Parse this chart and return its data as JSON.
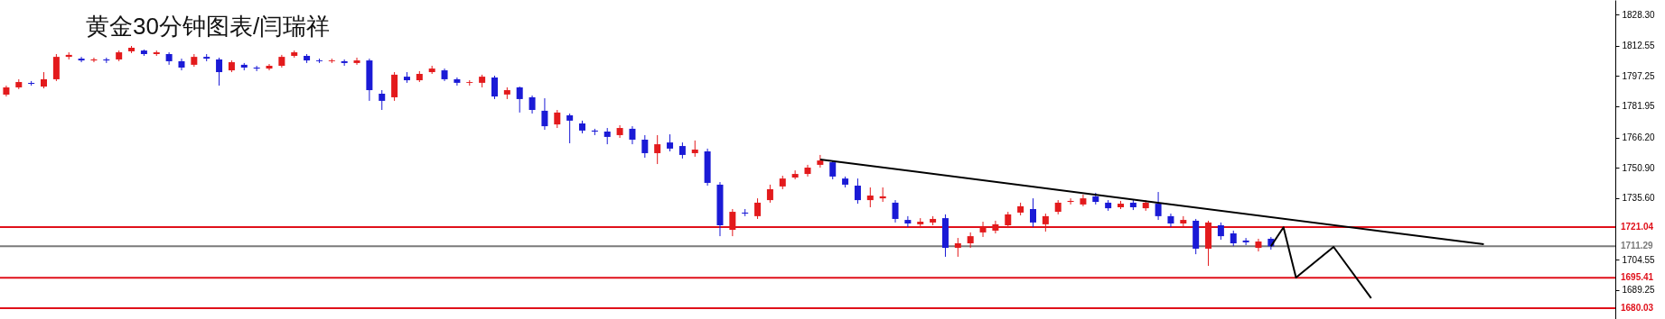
{
  "chart_data": {
    "type": "candlestick",
    "title": "黄金30分钟图表/闫瑞祥",
    "tick_labels": "y",
    "grid": false,
    "categories": [
      null,
      null,
      null,
      null,
      null,
      null,
      null,
      null,
      null,
      null,
      null,
      null,
      null,
      null,
      null,
      null,
      null,
      null,
      null,
      null,
      null,
      null,
      null,
      null,
      null,
      null,
      null,
      null,
      null,
      null,
      null,
      null,
      null,
      null,
      null,
      null,
      null,
      null,
      null,
      null,
      null,
      null,
      null,
      null,
      null,
      null,
      null,
      null,
      null,
      null,
      null,
      null,
      null,
      null,
      null,
      null,
      null,
      null,
      null,
      null,
      null,
      null,
      null,
      null,
      null,
      null,
      null,
      null,
      null,
      null,
      null,
      null,
      null,
      null,
      null,
      null,
      null,
      null,
      null,
      null,
      null,
      null,
      null,
      null,
      null,
      null,
      null,
      null,
      null,
      null,
      null,
      null,
      null,
      null,
      null,
      null,
      null,
      null,
      null,
      null,
      null,
      null,
      null,
      null,
      null,
      null,
      null,
      null,
      null,
      null,
      null,
      null,
      null,
      null,
      null,
      null,
      null,
      null,
      null,
      null,
      null,
      null,
      null,
      null,
      null,
      null,
      null,
      null,
      null
    ],
    "ylim": [
      1674.6,
      1835.6
    ],
    "yticks": [
      {
        "value": 1828.3,
        "label": "1828.30"
      },
      {
        "value": 1812.55,
        "label": "1812.55"
      },
      {
        "value": 1797.25,
        "label": "1797.25"
      },
      {
        "value": 1781.95,
        "label": "1781.95"
      },
      {
        "value": 1766.2,
        "label": "1766.20"
      },
      {
        "value": 1750.9,
        "label": "1750.90"
      },
      {
        "value": 1735.6,
        "label": "1735.60"
      },
      {
        "value": 1704.55,
        "label": "1704.55"
      },
      {
        "value": 1689.25,
        "label": "1689.25"
      }
    ],
    "ohlc": [
      [
        1787.9,
        1792.4,
        1786.9,
        1791.5
      ],
      [
        1791.5,
        1795.6,
        1790.6,
        1794.2
      ],
      [
        1793.8,
        1794.7,
        1792.4,
        1793.3
      ],
      [
        1791.9,
        1799.2,
        1791.0,
        1795.6
      ],
      [
        1795.6,
        1808.3,
        1794.7,
        1806.9
      ],
      [
        1806.9,
        1809.2,
        1805.6,
        1807.9
      ],
      [
        1806.0,
        1806.9,
        1804.2,
        1805.1
      ],
      [
        1805.1,
        1806.5,
        1804.2,
        1805.6
      ],
      [
        1805.6,
        1806.5,
        1803.8,
        1805.1
      ],
      [
        1805.6,
        1810.1,
        1804.7,
        1809.2
      ],
      [
        1809.7,
        1812.4,
        1808.8,
        1811.5
      ],
      [
        1810.1,
        1810.6,
        1807.4,
        1808.3
      ],
      [
        1808.3,
        1810.1,
        1807.4,
        1809.2
      ],
      [
        1808.3,
        1809.2,
        1802.9,
        1804.7
      ],
      [
        1804.7,
        1806.0,
        1800.1,
        1801.5
      ],
      [
        1802.9,
        1808.3,
        1801.9,
        1806.9
      ],
      [
        1806.9,
        1808.3,
        1804.7,
        1806.0
      ],
      [
        1805.6,
        1806.5,
        1792.4,
        1799.2
      ],
      [
        1800.1,
        1805.1,
        1799.2,
        1804.2
      ],
      [
        1802.9,
        1803.8,
        1800.1,
        1801.5
      ],
      [
        1801.5,
        1802.4,
        1799.7,
        1801.0
      ],
      [
        1801.0,
        1803.3,
        1800.1,
        1802.4
      ],
      [
        1802.4,
        1807.9,
        1801.5,
        1806.9
      ],
      [
        1807.4,
        1810.1,
        1806.5,
        1809.2
      ],
      [
        1807.4,
        1808.3,
        1803.8,
        1805.1
      ],
      [
        1805.1,
        1806.0,
        1803.8,
        1804.7
      ],
      [
        1804.7,
        1806.0,
        1803.8,
        1805.1
      ],
      [
        1804.7,
        1805.6,
        1802.4,
        1803.8
      ],
      [
        1803.8,
        1806.5,
        1802.9,
        1805.1
      ],
      [
        1805.1,
        1806.0,
        1784.7,
        1790.1
      ],
      [
        1788.3,
        1790.1,
        1780.1,
        1784.7
      ],
      [
        1786.5,
        1799.2,
        1784.7,
        1797.9
      ],
      [
        1796.9,
        1799.2,
        1793.8,
        1795.1
      ],
      [
        1795.1,
        1799.7,
        1794.2,
        1798.3
      ],
      [
        1799.2,
        1802.4,
        1798.3,
        1801.0
      ],
      [
        1800.1,
        1801.0,
        1794.7,
        1795.6
      ],
      [
        1795.6,
        1796.5,
        1792.4,
        1793.8
      ],
      [
        1793.8,
        1795.1,
        1792.4,
        1794.2
      ],
      [
        1793.8,
        1797.9,
        1791.5,
        1796.9
      ],
      [
        1796.5,
        1797.4,
        1785.6,
        1786.9
      ],
      [
        1787.9,
        1791.5,
        1785.6,
        1790.1
      ],
      [
        1791.5,
        1791.9,
        1778.8,
        1785.6
      ],
      [
        1786.5,
        1787.4,
        1778.3,
        1780.1
      ],
      [
        1779.7,
        1786.0,
        1770.1,
        1771.9
      ],
      [
        1772.8,
        1780.1,
        1771.0,
        1778.8
      ],
      [
        1777.4,
        1778.3,
        1763.3,
        1774.7
      ],
      [
        1773.3,
        1774.7,
        1768.3,
        1769.7
      ],
      [
        1769.7,
        1770.6,
        1767.4,
        1769.2
      ],
      [
        1769.2,
        1771.0,
        1762.8,
        1766.5
      ],
      [
        1767.4,
        1772.4,
        1766.0,
        1771.0
      ],
      [
        1770.6,
        1771.9,
        1762.8,
        1765.1
      ],
      [
        1765.1,
        1767.4,
        1756.0,
        1758.3
      ],
      [
        1758.3,
        1767.4,
        1752.8,
        1762.8
      ],
      [
        1763.7,
        1767.8,
        1759.2,
        1760.6
      ],
      [
        1761.9,
        1763.7,
        1755.6,
        1757.4
      ],
      [
        1758.3,
        1764.7,
        1756.5,
        1760.1
      ],
      [
        1759.2,
        1760.6,
        1741.9,
        1743.3
      ],
      [
        1742.4,
        1743.7,
        1716.4,
        1721.9
      ],
      [
        1719.6,
        1730.1,
        1716.4,
        1728.7
      ],
      [
        1728.3,
        1730.1,
        1726.5,
        1727.8
      ],
      [
        1726.5,
        1735.5,
        1725.1,
        1733.3
      ],
      [
        1734.6,
        1742.4,
        1733.3,
        1740.1
      ],
      [
        1741.5,
        1746.9,
        1740.1,
        1745.5
      ],
      [
        1746.0,
        1749.6,
        1745.1,
        1747.8
      ],
      [
        1747.8,
        1752.4,
        1746.5,
        1751.0
      ],
      [
        1752.4,
        1757.4,
        1751.0,
        1754.6
      ],
      [
        1753.7,
        1754.6,
        1745.1,
        1746.5
      ],
      [
        1745.5,
        1746.5,
        1741.0,
        1742.4
      ],
      [
        1741.9,
        1745.5,
        1732.8,
        1734.6
      ],
      [
        1734.6,
        1741.0,
        1731.0,
        1736.9
      ],
      [
        1735.5,
        1741.0,
        1733.7,
        1736.5
      ],
      [
        1733.3,
        1734.6,
        1723.3,
        1725.1
      ],
      [
        1724.6,
        1726.5,
        1721.0,
        1722.8
      ],
      [
        1722.4,
        1725.5,
        1720.5,
        1723.7
      ],
      [
        1723.3,
        1726.5,
        1721.9,
        1725.1
      ],
      [
        1725.5,
        1727.4,
        1706.0,
        1710.5
      ],
      [
        1710.5,
        1715.5,
        1706.0,
        1712.8
      ],
      [
        1712.8,
        1718.3,
        1710.5,
        1716.4
      ],
      [
        1718.3,
        1723.7,
        1716.0,
        1721.0
      ],
      [
        1719.2,
        1724.2,
        1717.8,
        1722.4
      ],
      [
        1721.9,
        1728.7,
        1720.5,
        1727.4
      ],
      [
        1728.3,
        1733.3,
        1726.9,
        1731.5
      ],
      [
        1730.1,
        1735.5,
        1721.0,
        1723.3
      ],
      [
        1722.4,
        1727.8,
        1718.7,
        1726.5
      ],
      [
        1728.7,
        1734.6,
        1727.4,
        1733.3
      ],
      [
        1733.7,
        1735.5,
        1732.4,
        1734.2
      ],
      [
        1732.4,
        1737.4,
        1731.5,
        1735.5
      ],
      [
        1736.5,
        1738.3,
        1732.4,
        1733.7
      ],
      [
        1733.3,
        1734.6,
        1729.2,
        1730.5
      ],
      [
        1731.0,
        1734.2,
        1730.1,
        1732.8
      ],
      [
        1733.3,
        1734.6,
        1729.6,
        1731.0
      ],
      [
        1730.5,
        1734.6,
        1729.2,
        1733.3
      ],
      [
        1732.8,
        1738.7,
        1724.6,
        1726.5
      ],
      [
        1726.5,
        1727.8,
        1721.0,
        1722.8
      ],
      [
        1722.8,
        1726.5,
        1721.4,
        1724.6
      ],
      [
        1724.2,
        1725.1,
        1707.3,
        1710.1
      ],
      [
        1710.1,
        1724.2,
        1701.4,
        1723.3
      ],
      [
        1721.9,
        1723.3,
        1714.6,
        1716.4
      ],
      [
        1717.8,
        1719.2,
        1711.4,
        1712.8
      ],
      [
        1714.2,
        1715.5,
        1711.9,
        1713.3
      ],
      [
        1710.5,
        1715.1,
        1708.7,
        1713.7
      ],
      [
        1715.1,
        1716.0,
        1709.6,
        1711.3
      ],
      null,
      null,
      null,
      null,
      null,
      null,
      null,
      null,
      null,
      null,
      null,
      null,
      null,
      null,
      null,
      null,
      null,
      null,
      null,
      null,
      null,
      null,
      null,
      null,
      null,
      null,
      null
    ],
    "colors": [
      "#e31a1c",
      "#e31a1c",
      "#1a1ad6",
      "#e31a1c",
      "#e31a1c",
      "#e31a1c",
      "#1a1ad6",
      "#e31a1c",
      "#1a1ad6",
      "#e31a1c",
      "#e31a1c",
      "#1a1ad6",
      "#e31a1c",
      "#1a1ad6",
      "#1a1ad6",
      "#e31a1c",
      "#1a1ad6",
      "#1a1ad6",
      "#e31a1c",
      "#1a1ad6",
      "#1a1ad6",
      "#e31a1c",
      "#e31a1c",
      "#e31a1c",
      "#1a1ad6",
      "#1a1ad6",
      "#e31a1c",
      "#1a1ad6",
      "#e31a1c",
      "#1a1ad6",
      "#1a1ad6",
      "#e31a1c",
      "#1a1ad6",
      "#e31a1c",
      "#e31a1c",
      "#1a1ad6",
      "#1a1ad6",
      "#e31a1c",
      "#e31a1c",
      "#1a1ad6",
      "#e31a1c",
      "#1a1ad6",
      "#1a1ad6",
      "#1a1ad6",
      "#e31a1c",
      "#1a1ad6",
      "#1a1ad6",
      "#1a1ad6",
      "#1a1ad6",
      "#e31a1c",
      "#1a1ad6",
      "#1a1ad6",
      "#e31a1c",
      "#1a1ad6",
      "#1a1ad6",
      "#e31a1c",
      "#1a1ad6",
      "#1a1ad6",
      "#e31a1c",
      "#1a1ad6",
      "#e31a1c",
      "#e31a1c",
      "#e31a1c",
      "#e31a1c",
      "#e31a1c",
      "#e31a1c",
      "#1a1ad6",
      "#1a1ad6",
      "#1a1ad6",
      "#e31a1c",
      "#e31a1c",
      "#1a1ad6",
      "#1a1ad6",
      "#e31a1c",
      "#e31a1c",
      "#1a1ad6",
      "#e31a1c",
      "#e31a1c",
      "#e31a1c",
      "#e31a1c",
      "#e31a1c",
      "#e31a1c",
      "#1a1ad6",
      "#e31a1c",
      "#e31a1c",
      "#e31a1c",
      "#e31a1c",
      "#1a1ad6",
      "#1a1ad6",
      "#e31a1c",
      "#1a1ad6",
      "#e31a1c",
      "#1a1ad6",
      "#1a1ad6",
      "#e31a1c",
      "#1a1ad6",
      "#e31a1c",
      "#1a1ad6",
      "#1a1ad6",
      "#1a1ad6",
      "#e31a1c",
      "#1a1ad6",
      null,
      null,
      null,
      null,
      null,
      null,
      null,
      null,
      null,
      null,
      null,
      null,
      null,
      null,
      null,
      null,
      null,
      null,
      null,
      null,
      null,
      null,
      null,
      null,
      null,
      null,
      null
    ],
    "series": [
      {
        "type": "line",
        "color": "#000000",
        "values": [
          null,
          null,
          null,
          null,
          null,
          null,
          null,
          null,
          null,
          null,
          null,
          null,
          null,
          null,
          null,
          null,
          null,
          null,
          null,
          null,
          null,
          null,
          null,
          null,
          null,
          null,
          null,
          null,
          null,
          null,
          null,
          null,
          null,
          null,
          null,
          null,
          null,
          null,
          null,
          null,
          null,
          null,
          null,
          null,
          null,
          null,
          null,
          null,
          null,
          null,
          null,
          null,
          null,
          null,
          null,
          null,
          null,
          null,
          null,
          null,
          null,
          null,
          null,
          null,
          null,
          1755.1,
          null,
          null,
          null,
          null,
          null,
          null,
          null,
          null,
          null,
          null,
          null,
          null,
          null,
          null,
          null,
          null,
          null,
          null,
          null,
          null,
          null,
          null,
          null,
          null,
          null,
          null,
          null,
          null,
          null,
          null,
          null,
          null,
          null,
          null,
          null,
          null,
          null,
          null,
          null,
          null,
          null,
          null,
          null,
          null,
          null,
          null,
          null,
          null,
          null,
          null,
          null,
          null,
          1712.3,
          null,
          null,
          null,
          null,
          null,
          null,
          null,
          null,
          null,
          null
        ]
      },
      {
        "type": "line",
        "color": "#000000",
        "values": [
          null,
          null,
          null,
          null,
          null,
          null,
          null,
          null,
          null,
          null,
          null,
          null,
          null,
          null,
          null,
          null,
          null,
          null,
          null,
          null,
          null,
          null,
          null,
          null,
          null,
          null,
          null,
          null,
          null,
          null,
          null,
          null,
          null,
          null,
          null,
          null,
          null,
          null,
          null,
          null,
          null,
          null,
          null,
          null,
          null,
          null,
          null,
          null,
          null,
          null,
          null,
          null,
          null,
          null,
          null,
          null,
          null,
          null,
          null,
          null,
          null,
          null,
          null,
          null,
          null,
          null,
          null,
          null,
          null,
          null,
          null,
          null,
          null,
          null,
          null,
          null,
          null,
          null,
          null,
          null,
          null,
          null,
          null,
          null,
          null,
          null,
          null,
          null,
          null,
          null,
          null,
          null,
          null,
          null,
          null,
          null,
          null,
          null,
          null,
          null,
          null,
          1711.3,
          1720.9,
          1695.5,
          null,
          null,
          1711.0,
          null,
          null,
          1685.1,
          null,
          null,
          null,
          null,
          null,
          null,
          null,
          null,
          null,
          null,
          null,
          null,
          null,
          null,
          null,
          null,
          null,
          null,
          null
        ]
      }
    ],
    "ref_lines": [
      {
        "axis": "y",
        "value": 1721.04,
        "label": "1721.04",
        "color": "#e0101a"
      },
      {
        "axis": "y",
        "value": 1711.29,
        "label": "1711.29",
        "color": "#7a7a7a"
      },
      {
        "axis": "y",
        "value": 1695.41,
        "label": "1695.41",
        "color": "#e0101a"
      },
      {
        "axis": "y",
        "value": 1680.03,
        "label": "1680.03",
        "color": "#e0101a"
      }
    ]
  }
}
